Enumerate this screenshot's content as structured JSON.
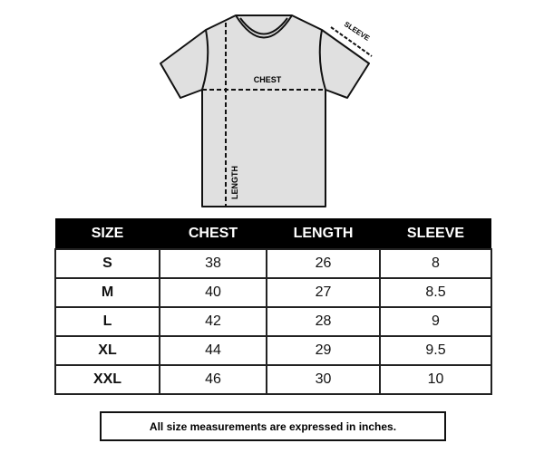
{
  "diagram": {
    "chest_label": "CHEST",
    "length_label": "LENGTH",
    "sleeve_label": "SLEEVE",
    "shirt_color": "#e0e0e0"
  },
  "table": {
    "headers": [
      "SIZE",
      "CHEST",
      "LENGTH",
      "SLEEVE"
    ],
    "rows": [
      [
        "S",
        "38",
        "26",
        "8"
      ],
      [
        "M",
        "40",
        "27",
        "8.5"
      ],
      [
        "L",
        "42",
        "28",
        "9"
      ],
      [
        "XL",
        "44",
        "29",
        "9.5"
      ],
      [
        "XXL",
        "46",
        "30",
        "10"
      ]
    ]
  },
  "note": "All size measurements are expressed in inches."
}
